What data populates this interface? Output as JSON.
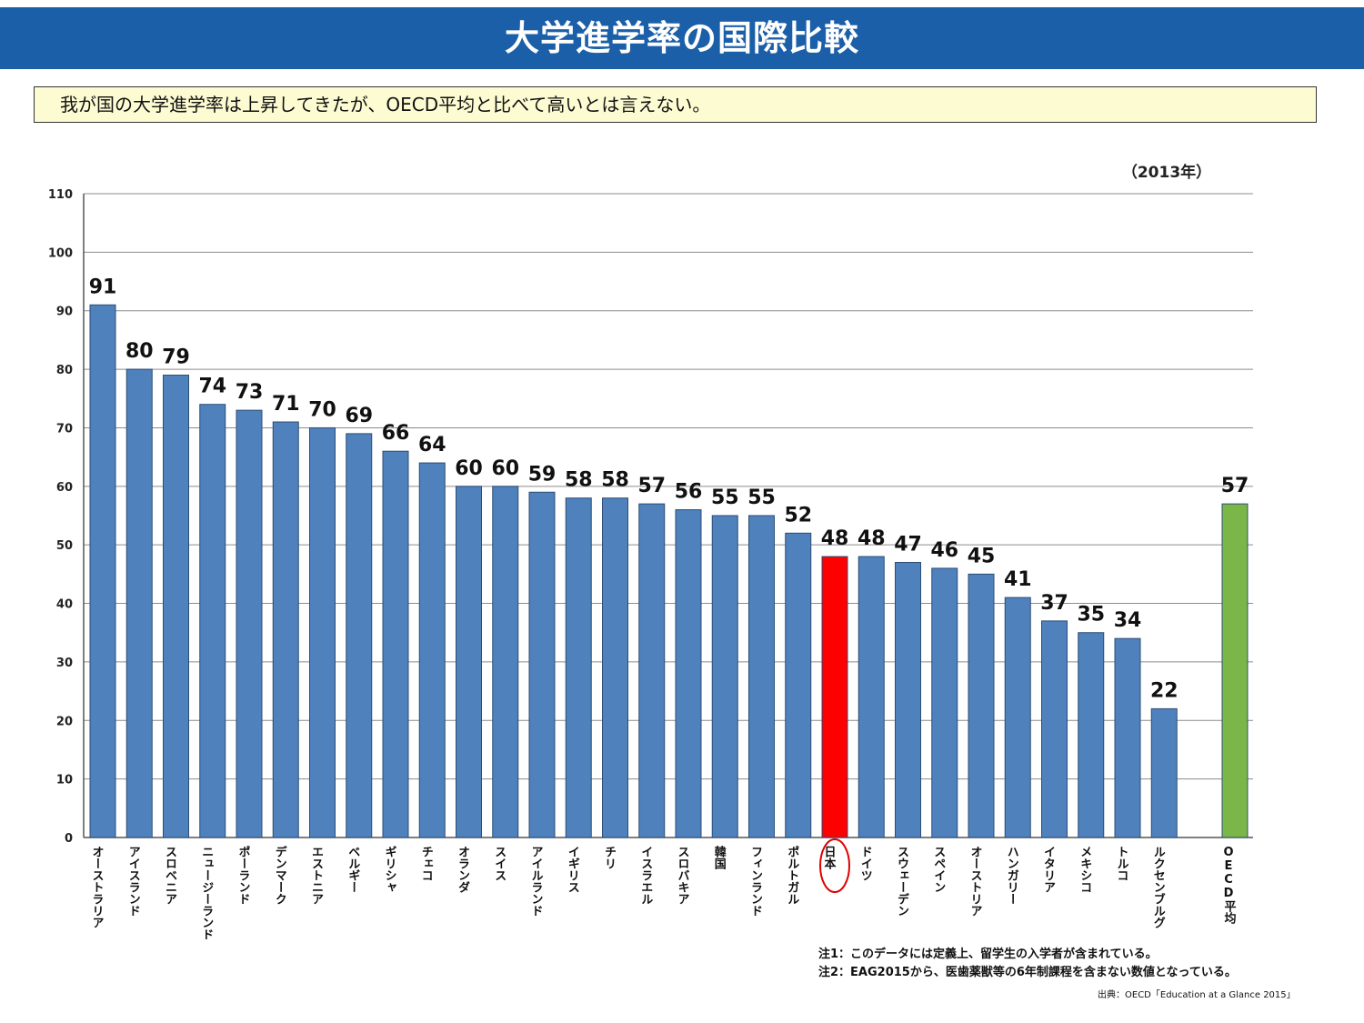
{
  "title": "大学進学率の国際比較",
  "summary": "我が国の大学進学率は上昇してきたが、OECD平均と比べて高いとは言えない。",
  "year_label": "（2013年）",
  "notes": [
    "注1：このデータには定義上、留学生の入学者が含まれている。",
    "注2：EAG2015から、医歯薬獣等の6年制課程を含まない数値となっている。"
  ],
  "source": "出典：OECD「Education at a Glance 2015」",
  "colors": {
    "default_bar": "#4f81bd",
    "japan_bar": "#ff0000",
    "oecd_bar": "#7ab648",
    "japan_circle": "#e00000",
    "title_bg": "#1b5fa8"
  },
  "chart_data": {
    "type": "bar",
    "categories": [
      "オーストラリア",
      "アイスランド",
      "スロベニア",
      "ニュージーランド",
      "ポーランド",
      "デンマーク",
      "エストニア",
      "ベルギー",
      "ギリシャ",
      "チェコ",
      "オランダ",
      "スイス",
      "アイルランド",
      "イギリス",
      "チリ",
      "イスラエル",
      "スロバキア",
      "韓国",
      "フィンランド",
      "ポルトガル",
      "日本",
      "ドイツ",
      "スウェーデン",
      "スペイン",
      "オーストリア",
      "ハンガリー",
      "イタリア",
      "メキシコ",
      "トルコ",
      "ルクセンブルグ",
      "OECD平均"
    ],
    "values": [
      91,
      80,
      79,
      74,
      73,
      71,
      70,
      69,
      66,
      64,
      60,
      60,
      59,
      58,
      58,
      57,
      56,
      55,
      55,
      52,
      48,
      48,
      47,
      46,
      45,
      41,
      37,
      35,
      34,
      22,
      57
    ],
    "highlight": {
      "japan": "日本",
      "average": "OECD平均"
    },
    "ylim": [
      0,
      110
    ],
    "yticks": [
      0,
      10,
      20,
      30,
      40,
      50,
      60,
      70,
      80,
      90,
      100,
      110
    ],
    "grid": true,
    "legend": "none"
  }
}
